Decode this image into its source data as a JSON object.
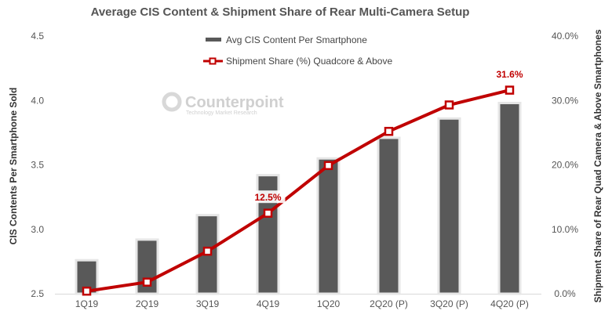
{
  "chart_data": {
    "type": "bar",
    "title": "Average CIS Content & Shipment Share of Rear Multi-Camera Setup",
    "categories": [
      "1Q19",
      "2Q19",
      "3Q19",
      "4Q19",
      "1Q20",
      "2Q20 (P)",
      "3Q20 (P)",
      "4Q20 (P)"
    ],
    "series": [
      {
        "name": "Avg CIS Content Per Smartphone",
        "type": "bar",
        "axis": "left",
        "color": "#595959",
        "values": [
          2.76,
          2.92,
          3.11,
          3.42,
          3.55,
          3.71,
          3.86,
          3.98
        ]
      },
      {
        "name": "Shipment Share (%) Quadcore & Above",
        "type": "line",
        "axis": "right",
        "color": "#c00000",
        "values": [
          0.4,
          1.8,
          6.6,
          12.5,
          19.9,
          25.2,
          29.3,
          31.6
        ]
      }
    ],
    "data_labels": [
      {
        "series": 1,
        "index": 3,
        "text": "12.5%"
      },
      {
        "series": 1,
        "index": 7,
        "text": "31.6%"
      }
    ],
    "ylabel": "CIS Contents Per Smartphone Sold",
    "ylabel_right": "Shipment Share of Rear Quad Camera  & Above Smartphones",
    "ylim": [
      2.5,
      4.5
    ],
    "ylim_right": [
      0,
      40
    ],
    "yticks": [
      "2.5",
      "3.0",
      "3.5",
      "4.0",
      "4.5"
    ],
    "yticks_right": [
      "0.0%",
      "10.0%",
      "20.0%",
      "30.0%",
      "40.0%"
    ],
    "legend_position": "top-center",
    "grid": false
  },
  "watermark": {
    "name": "Counterpoint",
    "tagline": "Technology Market Research"
  }
}
